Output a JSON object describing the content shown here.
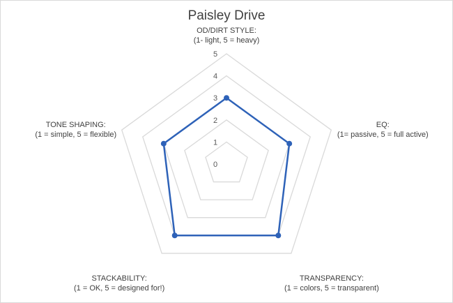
{
  "chart_data": {
    "type": "radar",
    "title": "Paisley Drive",
    "axes": [
      {
        "label_line1": "OD/DIRT STYLE:",
        "label_line2": "(1- light, 5 = heavy)"
      },
      {
        "label_line1": "EQ:",
        "label_line2": "(1= passive, 5 = full active)"
      },
      {
        "label_line1": "TRANSPARENCY:",
        "label_line2": "(1 = colors, 5 = transparent)"
      },
      {
        "label_line1": "STACKABILITY:",
        "label_line2": "(1 = OK, 5 = designed for!)"
      },
      {
        "label_line1": "TONE SHAPING:",
        "label_line2": "(1 = simple, 5 = flexible)"
      }
    ],
    "rmin": 0,
    "rmax": 5,
    "ticks": [
      "0",
      "1",
      "2",
      "3",
      "4",
      "5"
    ],
    "series": [
      {
        "values": [
          3,
          3,
          4,
          4,
          3
        ],
        "color": "#2e62b8"
      }
    ],
    "grid": true,
    "grid_color": "#d9d9d9"
  }
}
